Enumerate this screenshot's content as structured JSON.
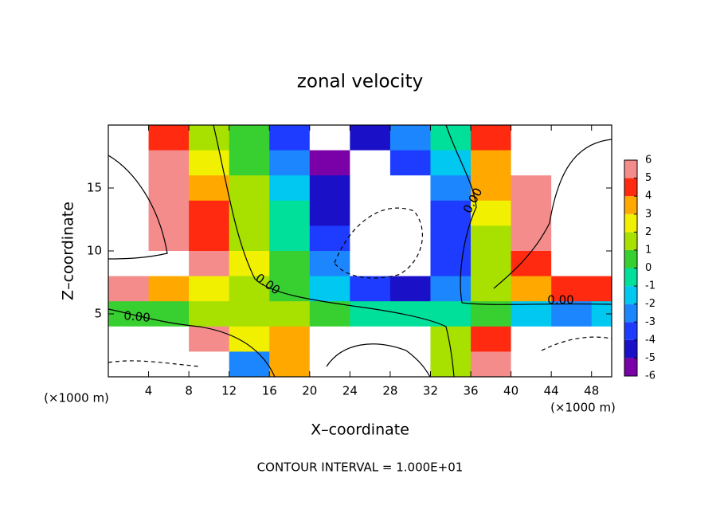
{
  "chart_data": {
    "type": "contour",
    "title": "zonal velocity",
    "xlabel": "X–coordinate",
    "ylabel": "Z–coordinate",
    "x_unit": "(×1000 m)",
    "y_unit": "(×1000 m)",
    "footer": "CONTOUR INTERVAL = 1.000E+01",
    "contour_labels": [
      "0.00",
      "0.00",
      "0.00",
      "0.00"
    ],
    "xlim": [
      0,
      50
    ],
    "ylim": [
      0,
      20
    ],
    "xticks": [
      4,
      8,
      12,
      16,
      20,
      24,
      28,
      32,
      36,
      40,
      44,
      48
    ],
    "yticks": [
      5,
      10,
      15
    ],
    "x": [
      2,
      6,
      10,
      14,
      18,
      22,
      26,
      30,
      34,
      38,
      42,
      46,
      50
    ],
    "y": [
      19,
      17,
      15,
      13,
      11,
      9,
      7,
      5,
      3,
      1
    ],
    "z": [
      [
        8,
        4,
        1,
        0,
        -4,
        -7,
        -5,
        -3,
        -1,
        4,
        8,
        8,
        8
      ],
      [
        8,
        5,
        2,
        0,
        -3,
        -6,
        -7,
        -4,
        -2,
        3,
        8,
        8,
        8
      ],
      [
        8,
        5,
        3,
        1,
        -2,
        -5,
        -8,
        -8,
        -3,
        3,
        6,
        8,
        8
      ],
      [
        8,
        6,
        4,
        1,
        -1,
        -5,
        -8,
        -8,
        -4,
        2,
        5,
        8,
        8
      ],
      [
        8,
        6,
        4,
        1,
        -1,
        -4,
        -8,
        -8,
        -4,
        1,
        5,
        8,
        8
      ],
      [
        8,
        7,
        5,
        2,
        0,
        -3,
        -8,
        -8,
        -4,
        1,
        4,
        8,
        8
      ],
      [
        5,
        3,
        2,
        1,
        0,
        -2,
        -4,
        -5,
        -3,
        1,
        3,
        4,
        4
      ],
      [
        0,
        0,
        1,
        1,
        1,
        0,
        -1,
        -1,
        -1,
        0,
        -2,
        -3,
        -2
      ],
      [
        7,
        7,
        5,
        2,
        3,
        7,
        8,
        8,
        1,
        4,
        8,
        8,
        8
      ],
      [
        -7,
        -7,
        -7,
        -3,
        3,
        7,
        8,
        8,
        1,
        5,
        -7,
        -7,
        -7
      ]
    ],
    "clim": [
      -6,
      6
    ],
    "cticks": [
      -6,
      -5,
      -4,
      -3,
      -2,
      -1,
      0,
      1,
      2,
      3,
      4,
      5,
      6
    ],
    "colors": [
      "#7a00a8",
      "#1a10c8",
      "#1e3cff",
      "#1c86ff",
      "#00c8f0",
      "#00e09a",
      "#38d030",
      "#a8e000",
      "#f0f000",
      "#ffa800",
      "#ff2a10",
      "#f48c8c"
    ]
  }
}
